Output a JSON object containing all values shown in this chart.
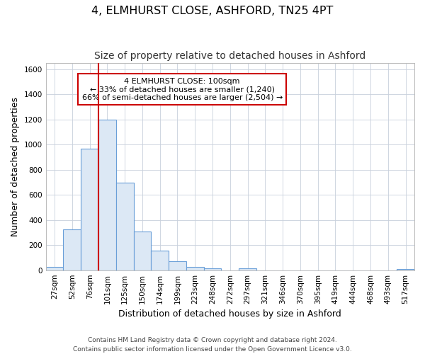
{
  "title": "4, ELMHURST CLOSE, ASHFORD, TN25 4PT",
  "subtitle": "Size of property relative to detached houses in Ashford",
  "xlabel": "Distribution of detached houses by size in Ashford",
  "ylabel": "Number of detached properties",
  "categories": [
    "27sqm",
    "52sqm",
    "76sqm",
    "101sqm",
    "125sqm",
    "150sqm",
    "174sqm",
    "199sqm",
    "223sqm",
    "248sqm",
    "272sqm",
    "297sqm",
    "321sqm",
    "346sqm",
    "370sqm",
    "395sqm",
    "419sqm",
    "444sqm",
    "468sqm",
    "493sqm",
    "517sqm"
  ],
  "values": [
    25,
    325,
    970,
    1200,
    700,
    310,
    155,
    70,
    28,
    15,
    0,
    15,
    0,
    0,
    0,
    0,
    0,
    0,
    0,
    0,
    10
  ],
  "bar_color": "#dce8f5",
  "bar_edgecolor": "#6a9fd8",
  "vline_x_index": 3,
  "vline_color": "#cc0000",
  "annotation_line1": "4 ELMHURST CLOSE: 100sqm",
  "annotation_line2": "← 33% of detached houses are smaller (1,240)",
  "annotation_line3": "66% of semi-detached houses are larger (2,504) →",
  "annotation_box_edgecolor": "#cc0000",
  "annotation_box_facecolor": "#ffffff",
  "ylim": [
    0,
    1650
  ],
  "yticks": [
    0,
    200,
    400,
    600,
    800,
    1000,
    1200,
    1400,
    1600
  ],
  "footer": "Contains HM Land Registry data © Crown copyright and database right 2024.\nContains public sector information licensed under the Open Government Licence v3.0.",
  "bg_color": "#ffffff",
  "grid_color": "#c8d0dc",
  "title_fontsize": 11.5,
  "subtitle_fontsize": 10,
  "axis_label_fontsize": 9,
  "tick_fontsize": 7.5,
  "annotation_fontsize": 8,
  "footer_fontsize": 6.5
}
